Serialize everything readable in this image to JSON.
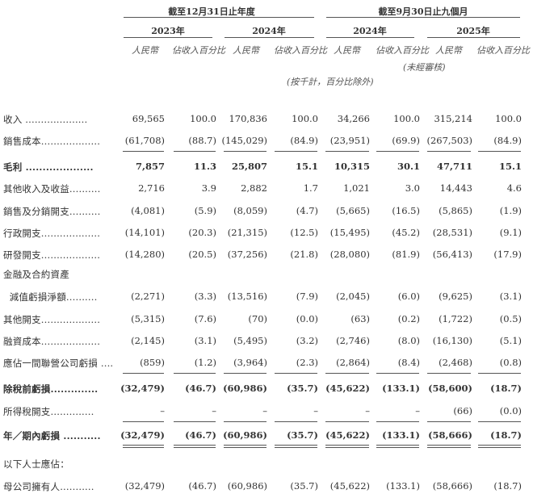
{
  "header": {
    "fy_period": "截至12月31日止年度",
    "nine_month_period": "截至9月30日止九個月",
    "years": [
      "2023年",
      "2024年",
      "2024年",
      "2025年"
    ],
    "col_rmb": "人民幣",
    "col_pct": "佔收入百分比",
    "unaudited": "(未經審核)",
    "unit_note": "(按千計，百分比除外)"
  },
  "rows": [
    {
      "label": "收入 ....................",
      "values": [
        "69,565",
        "100.0",
        "170,836",
        "100.0",
        "34,266",
        "100.0",
        "315,214",
        "100.0"
      ],
      "bold": false,
      "line_after": "none"
    },
    {
      "label": "銷售成本...................",
      "values": [
        "(61,708)",
        "(88.7)",
        "(145,029)",
        "(84.9)",
        "(23,951)",
        "(69.9)",
        "(267,503)",
        "(84.9)"
      ],
      "bold": false,
      "line_after": "single"
    },
    {
      "label": "毛利 ....................",
      "values": [
        "7,857",
        "11.3",
        "25,807",
        "15.1",
        "10,315",
        "30.1",
        "47,711",
        "15.1"
      ],
      "bold": true,
      "line_after": "none"
    },
    {
      "label": "其他收入及收益..........",
      "values": [
        "2,716",
        "3.9",
        "2,882",
        "1.7",
        "1,021",
        "3.0",
        "14,443",
        "4.6"
      ],
      "bold": false,
      "line_after": "none"
    },
    {
      "label": "銷售及分銷開支..........",
      "values": [
        "(4,081)",
        "(5.9)",
        "(8,059)",
        "(4.7)",
        "(5,665)",
        "(16.5)",
        "(5,865)",
        "(1.9)"
      ],
      "bold": false,
      "line_after": "none"
    },
    {
      "label": "行政開支...................",
      "values": [
        "(14,101)",
        "(20.3)",
        "(21,315)",
        "(12.5)",
        "(15,495)",
        "(45.2)",
        "(28,531)",
        "(9.1)"
      ],
      "bold": false,
      "line_after": "none"
    },
    {
      "label": "研發開支...................",
      "values": [
        "(14,280)",
        "(20.5)",
        "(37,256)",
        "(21.8)",
        "(28,080)",
        "(81.9)",
        "(56,413)",
        "(17.9)"
      ],
      "bold": false,
      "line_after": "none"
    },
    {
      "label": "金融及合約資產",
      "values": [],
      "bold": false,
      "line_after": "none"
    },
    {
      "label": "  減值虧損淨額..........",
      "values": [
        "(2,271)",
        "(3.3)",
        "(13,516)",
        "(7.9)",
        "(2,045)",
        "(6.0)",
        "(9,625)",
        "(3.1)"
      ],
      "bold": false,
      "line_after": "none"
    },
    {
      "label": "其他開支...................",
      "values": [
        "(5,315)",
        "(7.6)",
        "(70)",
        "(0.0)",
        "(63)",
        "(0.2)",
        "(1,722)",
        "(0.5)"
      ],
      "bold": false,
      "line_after": "none"
    },
    {
      "label": "融資成本...................",
      "values": [
        "(2,145)",
        "(3.1)",
        "(5,495)",
        "(3.2)",
        "(2,746)",
        "(8.0)",
        "(16,130)",
        "(5.1)"
      ],
      "bold": false,
      "line_after": "none"
    },
    {
      "label": "應佔一間聯營公司虧損 ....",
      "values": [
        "(859)",
        "(1.2)",
        "(3,964)",
        "(2.3)",
        "(2,864)",
        "(8.4)",
        "(2,468)",
        "(0.8)"
      ],
      "bold": false,
      "line_after": "single"
    },
    {
      "label": "除稅前虧損..............",
      "values": [
        "(32,479)",
        "(46.7)",
        "(60,986)",
        "(35.7)",
        "(45,622)",
        "(133.1)",
        "(58,600)",
        "(18.7)"
      ],
      "bold": true,
      "line_after": "none"
    },
    {
      "label": "所得稅開支..............",
      "values": [
        "–",
        "–",
        "–",
        "–",
        "–",
        "–",
        "(66)",
        "(0.0)"
      ],
      "bold": false,
      "line_after": "single"
    },
    {
      "label": "年／期內虧損 ...........",
      "values": [
        "(32,479)",
        "(46.7)",
        "(60,986)",
        "(35.7)",
        "(45,622)",
        "(133.1)",
        "(58,666)",
        "(18.7)"
      ],
      "bold": true,
      "line_after": "double"
    },
    {
      "label": "以下人士應佔：",
      "values": [],
      "bold": false,
      "line_after": "none"
    },
    {
      "label": "母公司擁有人...........",
      "values": [
        "(32,479)",
        "(46.7)",
        "(60,986)",
        "(35.7)",
        "(45,622)",
        "(133.1)",
        "(58,666)",
        "(18.7)"
      ],
      "bold": false,
      "line_after": "none"
    }
  ]
}
